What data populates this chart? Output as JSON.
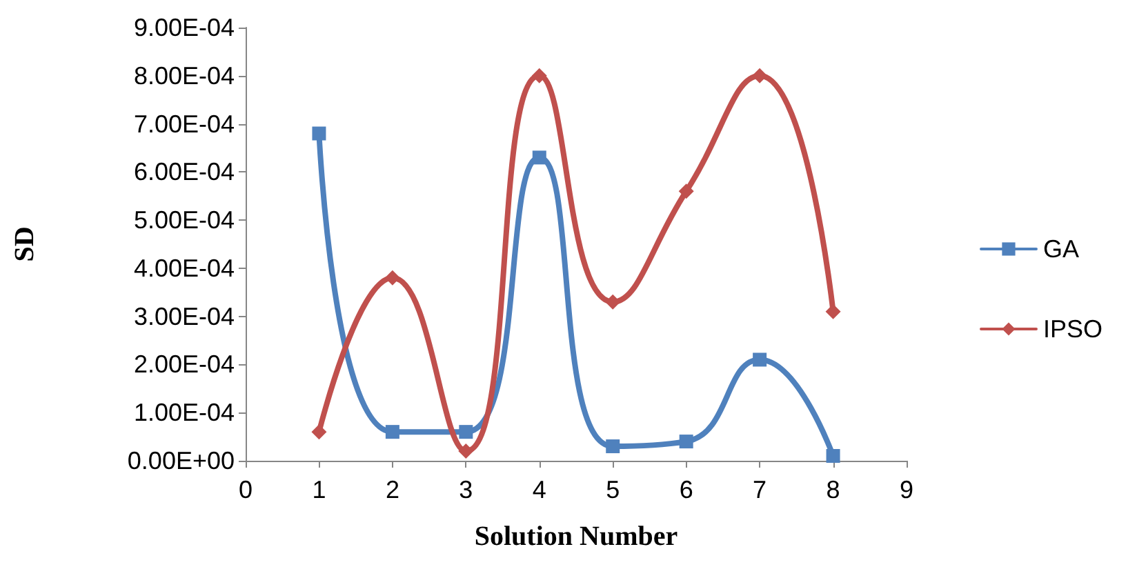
{
  "chart_data": {
    "type": "line",
    "xlabel": "Solution Number",
    "ylabel": "SD",
    "x": [
      1,
      2,
      3,
      4,
      5,
      6,
      7,
      8
    ],
    "series": [
      {
        "name": "GA",
        "color": "#4f81bd",
        "marker": "square",
        "values": [
          0.00068,
          6e-05,
          6e-05,
          0.00063,
          3e-05,
          4e-05,
          0.00021,
          1e-05
        ]
      },
      {
        "name": "IPSO",
        "color": "#c0504d",
        "marker": "diamond",
        "values": [
          6e-05,
          0.00038,
          2e-05,
          0.0008,
          0.00033,
          0.00056,
          0.0008,
          0.00031
        ]
      }
    ],
    "xlim": [
      0,
      9
    ],
    "xticks": [
      0,
      1,
      2,
      3,
      4,
      5,
      6,
      7,
      8,
      9
    ],
    "ylim": [
      0,
      0.0009
    ],
    "yticks": [
      {
        "value": 0,
        "label": "0.00E+00"
      },
      {
        "value": 0.0001,
        "label": "1.00E-04"
      },
      {
        "value": 0.0002,
        "label": "2.00E-04"
      },
      {
        "value": 0.0003,
        "label": "3.00E-04"
      },
      {
        "value": 0.0004,
        "label": "4.00E-04"
      },
      {
        "value": 0.0005,
        "label": "5.00E-04"
      },
      {
        "value": 0.0006,
        "label": "6.00E-04"
      },
      {
        "value": 0.0007,
        "label": "7.00E-04"
      },
      {
        "value": 0.0008,
        "label": "8.00E-04"
      },
      {
        "value": 0.0009,
        "label": "9.00E-04"
      }
    ],
    "grid": false,
    "legend": "right",
    "line_style": "solid"
  }
}
